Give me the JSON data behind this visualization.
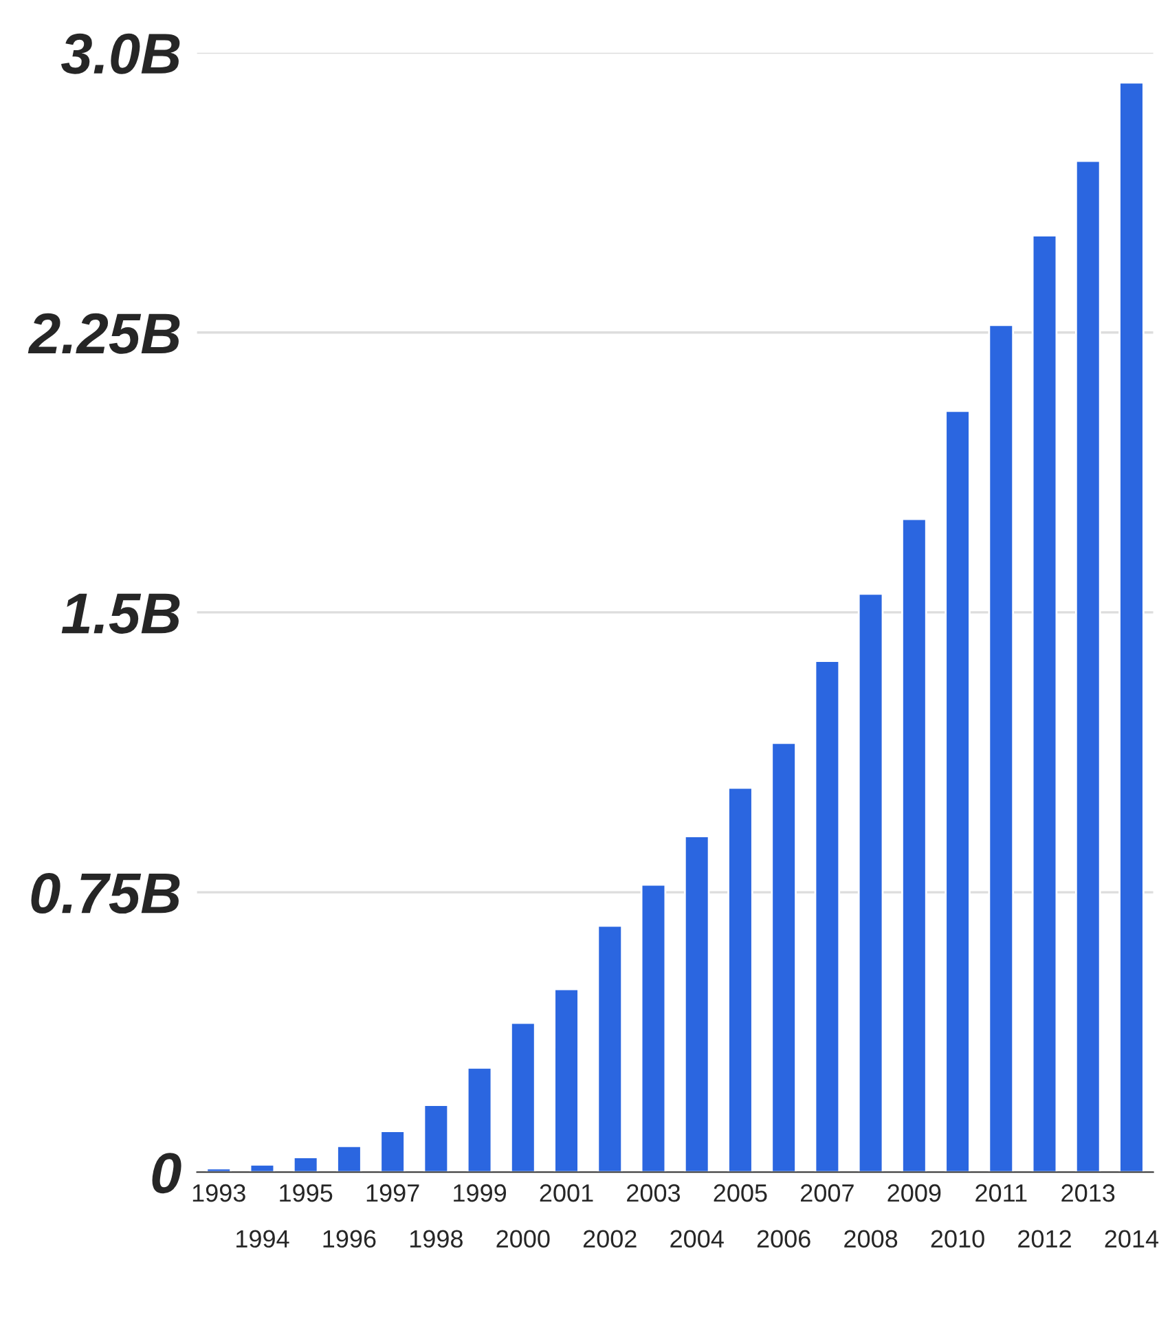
{
  "chart_data": {
    "type": "bar",
    "categories": [
      "1993",
      "1994",
      "1995",
      "1996",
      "1997",
      "1998",
      "1999",
      "2000",
      "2001",
      "2002",
      "2003",
      "2004",
      "2005",
      "2006",
      "2007",
      "2008",
      "2009",
      "2010",
      "2011",
      "2012",
      "2013",
      "2014"
    ],
    "values": [
      0.01,
      0.02,
      0.04,
      0.07,
      0.11,
      0.18,
      0.28,
      0.4,
      0.49,
      0.66,
      0.77,
      0.9,
      1.03,
      1.15,
      1.37,
      1.55,
      1.75,
      2.04,
      2.27,
      2.51,
      2.71,
      2.92
    ],
    "color": "#2b66e0",
    "ylim": [
      0,
      3.0
    ],
    "yticks": [
      {
        "value": 0,
        "label": "0"
      },
      {
        "value": 0.75,
        "label": "0.75B"
      },
      {
        "value": 1.5,
        "label": "1.5B"
      },
      {
        "value": 2.25,
        "label": "2.25B"
      },
      {
        "value": 3.0,
        "label": "3.0B"
      }
    ],
    "grid": "y",
    "legend": false
  }
}
